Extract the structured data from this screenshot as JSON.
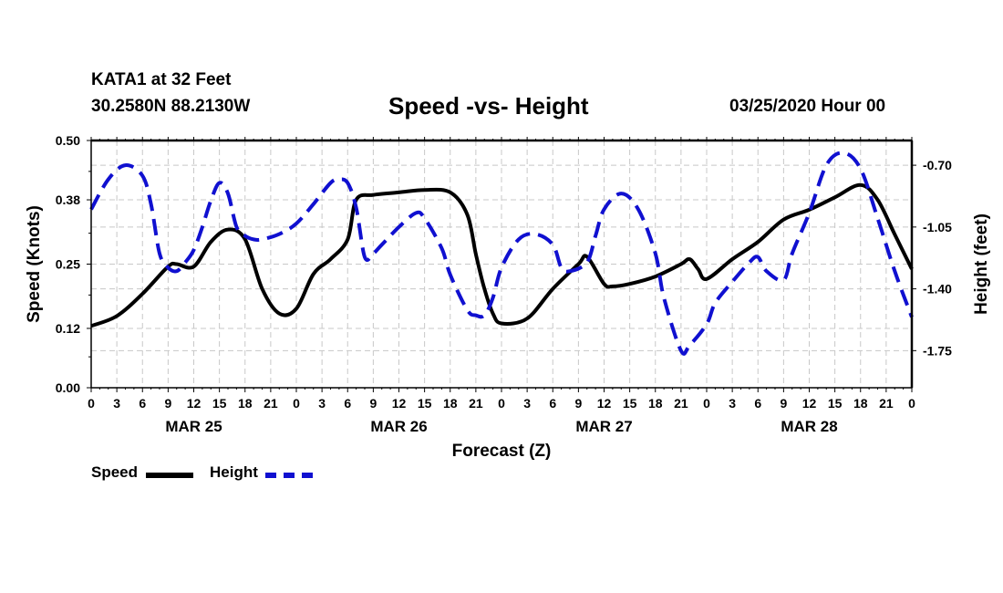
{
  "header": {
    "station": "KATA1 at 32 Feet",
    "coords": "30.2580N 88.2130W",
    "title": "Speed -vs- Height",
    "datetime": "03/25/2020 Hour 00"
  },
  "legend": {
    "speed_label": "Speed",
    "height_label": "Height"
  },
  "colors": {
    "speed": "#000000",
    "height": "#1010d0",
    "grid": "#c8c8c8"
  },
  "chart_data": {
    "type": "line",
    "title": "Speed -vs- Height",
    "xlabel": "Forecast (Z)",
    "ylabel_left": "Speed (Knots)",
    "ylabel_right": "Height (feet)",
    "x_range_hours": [
      0,
      96
    ],
    "x_tick_hours": [
      0,
      3,
      6,
      9,
      12,
      15,
      18,
      21,
      24,
      27,
      30,
      33,
      36,
      39,
      42,
      45,
      48,
      51,
      54,
      57,
      60,
      63,
      66,
      69,
      72,
      75,
      78,
      81,
      84,
      87,
      90,
      93,
      96
    ],
    "x_tick_labels": [
      "0",
      "3",
      "6",
      "9",
      "12",
      "15",
      "18",
      "21",
      "0",
      "3",
      "6",
      "9",
      "12",
      "15",
      "18",
      "21",
      "0",
      "3",
      "6",
      "9",
      "12",
      "15",
      "18",
      "21",
      "0",
      "3",
      "6",
      "9",
      "12",
      "15",
      "18",
      "21",
      "0"
    ],
    "date_labels": [
      {
        "hour": 12,
        "label": "MAR 25"
      },
      {
        "hour": 36,
        "label": "MAR 26"
      },
      {
        "hour": 60,
        "label": "MAR 27"
      },
      {
        "hour": 84,
        "label": "MAR 28"
      }
    ],
    "y_left": {
      "min": 0.0,
      "max": 0.5,
      "ticks": [
        0.0,
        0.12,
        0.25,
        0.38,
        0.5
      ],
      "tick_labels": [
        "0.00",
        "0.12",
        "0.25",
        "0.38",
        "0.50"
      ]
    },
    "y_right": {
      "min": -1.96,
      "max": -0.56,
      "ticks": [
        -1.75,
        -1.4,
        -1.05,
        -0.7
      ],
      "tick_labels": [
        "-1.75",
        "-1.40",
        "-1.05",
        "-0.70"
      ]
    },
    "grid": true,
    "series": [
      {
        "name": "Speed",
        "axis": "left",
        "style": "solid",
        "hours": [
          0,
          3,
          6,
          9,
          10,
          12,
          14,
          16,
          18,
          20,
          22,
          24,
          26,
          28,
          30,
          31,
          33,
          36,
          39,
          42,
          44,
          45,
          46,
          47,
          48,
          51,
          54,
          57,
          58,
          60,
          61,
          63,
          66,
          69,
          70,
          71,
          72,
          75,
          78,
          81,
          84,
          87,
          90,
          92,
          94,
          96
        ],
        "values": [
          0.125,
          0.145,
          0.19,
          0.245,
          0.25,
          0.245,
          0.295,
          0.32,
          0.3,
          0.2,
          0.15,
          0.16,
          0.23,
          0.26,
          0.3,
          0.38,
          0.39,
          0.395,
          0.4,
          0.395,
          0.35,
          0.27,
          0.2,
          0.15,
          0.13,
          0.14,
          0.2,
          0.25,
          0.265,
          0.21,
          0.205,
          0.21,
          0.225,
          0.25,
          0.26,
          0.24,
          0.22,
          0.26,
          0.295,
          0.34,
          0.36,
          0.385,
          0.41,
          0.38,
          0.31,
          0.24
        ]
      },
      {
        "name": "Height",
        "axis": "right",
        "style": "dashed",
        "hours": [
          0,
          2,
          4,
          6,
          7,
          8,
          9,
          10,
          11,
          12,
          13,
          14,
          15,
          16,
          17,
          18,
          19,
          20,
          22,
          24,
          26,
          28,
          29,
          30,
          31,
          32,
          33,
          34,
          36,
          38,
          39,
          41,
          42,
          44,
          45,
          46,
          47,
          48,
          50,
          52,
          54,
          55,
          56,
          58,
          59,
          60,
          62,
          64,
          66,
          67,
          69,
          70,
          72,
          73,
          75,
          77,
          78,
          79,
          81,
          82,
          84,
          86,
          88,
          90,
          92,
          94,
          96
        ],
        "values": [
          -0.95,
          -0.78,
          -0.7,
          -0.76,
          -0.92,
          -1.2,
          -1.28,
          -1.3,
          -1.25,
          -1.18,
          -1.05,
          -0.9,
          -0.8,
          -0.86,
          -1.05,
          -1.1,
          -1.12,
          -1.12,
          -1.09,
          -1.03,
          -0.92,
          -0.8,
          -0.78,
          -0.8,
          -0.94,
          -1.22,
          -1.2,
          -1.15,
          -1.05,
          -0.97,
          -1.0,
          -1.17,
          -1.32,
          -1.52,
          -1.55,
          -1.55,
          -1.45,
          -1.28,
          -1.12,
          -1.09,
          -1.15,
          -1.28,
          -1.3,
          -1.25,
          -1.1,
          -0.95,
          -0.86,
          -0.95,
          -1.2,
          -1.45,
          -1.75,
          -1.72,
          -1.6,
          -1.48,
          -1.36,
          -1.25,
          -1.22,
          -1.3,
          -1.35,
          -1.2,
          -0.97,
          -0.7,
          -0.63,
          -0.72,
          -1.0,
          -1.3,
          -1.56
        ]
      }
    ]
  }
}
